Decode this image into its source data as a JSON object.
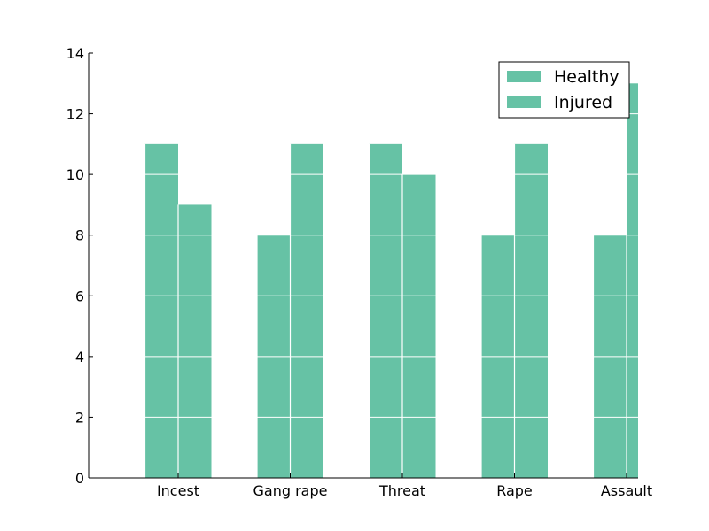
{
  "chart_data": {
    "type": "bar",
    "categories": [
      "Incest",
      "Gang rape",
      "Threat",
      "Rape",
      "Assault"
    ],
    "series": [
      {
        "name": "Healthy",
        "values": [
          11,
          8,
          11,
          8,
          8
        ],
        "color": "#66c2a5"
      },
      {
        "name": "Injured",
        "values": [
          9,
          11,
          10,
          11,
          13
        ],
        "color": "#66c2a5"
      }
    ],
    "yticks": [
      "0",
      "2",
      "4",
      "6",
      "8",
      "10",
      "12",
      "14"
    ],
    "ylim": [
      0,
      14
    ],
    "grid": "y-lines-over-bars",
    "legend": {
      "position": "top-right"
    },
    "title": "",
    "xlabel": "",
    "ylabel": ""
  }
}
